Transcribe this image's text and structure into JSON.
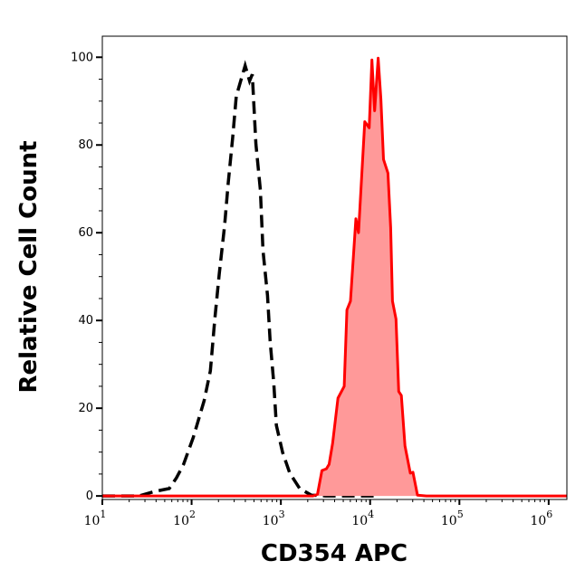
{
  "chart_data": {
    "type": "area",
    "title": "",
    "xlabel": "CD354 APC",
    "ylabel": "Relative Cell Count",
    "x_scale": "log",
    "xlim": [
      10,
      1600000
    ],
    "ylim": [
      -0.8,
      104.8
    ],
    "x_ticks": [
      {
        "base": "10",
        "exp": "1",
        "value": 10
      },
      {
        "base": "10",
        "exp": "2",
        "value": 100
      },
      {
        "base": "10",
        "exp": "3",
        "value": 1000
      },
      {
        "base": "10",
        "exp": "4",
        "value": 10000
      },
      {
        "base": "10",
        "exp": "5",
        "value": 100000
      },
      {
        "base": "10",
        "exp": "6",
        "value": 1000000
      }
    ],
    "y_ticks": [
      "0",
      "20",
      "40",
      "60",
      "80",
      "100"
    ],
    "grid": false,
    "series": [
      {
        "style": "dashed-line",
        "color": "#000000",
        "log10_x": [
          1.0,
          1.17,
          1.41,
          1.58,
          1.75,
          1.83,
          1.91,
          2.02,
          2.14,
          2.21,
          2.26,
          2.31,
          2.37,
          2.41,
          2.46,
          2.5,
          2.6,
          2.65,
          2.68,
          2.72,
          2.77,
          2.8,
          2.85,
          2.88,
          2.92,
          2.95,
          3.02,
          3.1,
          3.21,
          3.34,
          3.5,
          3.8,
          4.1
        ],
        "y": [
          0,
          0,
          0,
          1,
          1.7,
          4.1,
          7.2,
          13.4,
          21.7,
          28.5,
          40.3,
          50.6,
          61.6,
          71.3,
          81.6,
          91.1,
          98.1,
          94.6,
          96.1,
          80.2,
          69.8,
          56,
          45.7,
          35.3,
          25.8,
          16.1,
          9.9,
          5.2,
          1.7,
          0.2,
          0,
          0,
          0
        ]
      },
      {
        "style": "filled-area",
        "color": "#ff0000",
        "fill": "#ff9999",
        "log10_x": [
          1.0,
          3.3,
          3.36,
          3.41,
          3.46,
          3.51,
          3.54,
          3.58,
          3.64,
          3.71,
          3.74,
          3.78,
          3.84,
          3.87,
          3.94,
          3.99,
          4.02,
          4.05,
          4.09,
          4.12,
          4.15,
          4.2,
          4.23,
          4.25,
          4.29,
          4.32,
          4.35,
          4.39,
          4.45,
          4.48,
          4.53,
          4.63,
          6.2
        ],
        "y": [
          0,
          0,
          0,
          0.4,
          5.8,
          6.2,
          7.2,
          12,
          22.3,
          25,
          42.4,
          44.4,
          63.2,
          60,
          85.3,
          83.9,
          99.4,
          87.8,
          99.8,
          90.5,
          76.7,
          73.6,
          61.2,
          44.4,
          40.3,
          23.8,
          22.9,
          11.4,
          5.2,
          5.4,
          0.2,
          0,
          0
        ]
      }
    ]
  }
}
